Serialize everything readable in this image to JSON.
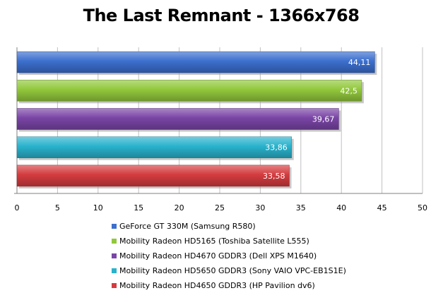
{
  "chart_data": {
    "type": "bar",
    "orientation": "horizontal",
    "title": "The Last Remnant - 1366x768",
    "categories": [
      "GeForce GT 330M (Samsung R580)",
      "Mobility Radeon HD5165 (Toshiba Satellite L555)",
      "Mobility Radeon HD4670 GDDR3 (Dell XPS M1640)",
      "Mobility Radeon HD5650 GDDR3 (Sony VAIO VPC-EB1S1E)",
      "Mobility Radeon HD4650 GDDR3 (HP Pavilion dv6)"
    ],
    "values": [
      44.11,
      42.5,
      39.67,
      33.86,
      33.58
    ],
    "value_labels": [
      "44,11",
      "42,5",
      "39,67",
      "33,86",
      "33,58"
    ],
    "colors": [
      "#3c6fce",
      "#92c83c",
      "#7a45a6",
      "#29b2cc",
      "#d43c3f"
    ],
    "xlim": [
      0,
      50
    ],
    "xticks": [
      "0",
      "5",
      "10",
      "15",
      "20",
      "25",
      "30",
      "35",
      "40",
      "45",
      "50"
    ],
    "grid": true,
    "legend": "bottom"
  }
}
